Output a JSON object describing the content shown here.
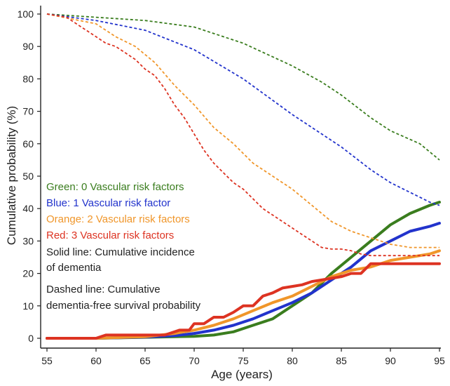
{
  "chart_data": {
    "type": "line",
    "xlabel": "Age (years)",
    "ylabel": "Cumulative probability (%)",
    "xlim": [
      55,
      95
    ],
    "ylim": [
      0,
      100
    ],
    "x_ticks": [
      55,
      60,
      65,
      70,
      75,
      80,
      85,
      90,
      95
    ],
    "y_ticks": [
      0,
      10,
      20,
      30,
      40,
      50,
      60,
      70,
      80,
      90,
      100
    ],
    "grid": false,
    "annotations": [
      {
        "text": "Green: 0 Vascular risk factors",
        "color": "#3a7d1e"
      },
      {
        "text": "Blue: 1 Vascular risk factor",
        "color": "#2233cc"
      },
      {
        "text": "Orange: 2 Vascular risk factors",
        "color": "#f0962a"
      },
      {
        "text": "Red: 3 Vascular risk factors",
        "color": "#dd3322"
      },
      {
        "text": "Solid line: Cumulative incidence",
        "color": "#222222"
      },
      {
        "text": "of dementia",
        "color": "#222222"
      },
      {
        "text": "Dashed line: Cumulative",
        "color": "#222222"
      },
      {
        "text": "dementia-free survival probability",
        "color": "#222222"
      }
    ],
    "series": [
      {
        "key": "green",
        "color": "#3a7d1e",
        "style": "solid",
        "x": [
          55,
          60,
          65,
          70,
          72,
          74,
          76,
          78,
          80,
          82,
          84,
          86,
          88,
          90,
          92,
          94,
          95
        ],
        "y": [
          0,
          0,
          0.3,
          0.6,
          1,
          2,
          4,
          6,
          10,
          14,
          20,
          25,
          30,
          35,
          38.5,
          41,
          42
        ]
      },
      {
        "key": "blue",
        "color": "#2233cc",
        "style": "solid",
        "x": [
          55,
          60,
          65,
          68,
          70,
          72,
          74,
          76,
          78,
          80,
          82,
          84,
          86,
          88,
          90,
          92,
          94,
          95
        ],
        "y": [
          0,
          0,
          0.4,
          0.8,
          1.5,
          2.5,
          4,
          6,
          8.5,
          11,
          14,
          18,
          22,
          27,
          30,
          33,
          34.5,
          35.5
        ]
      },
      {
        "key": "orange",
        "color": "#f0962a",
        "style": "solid",
        "x": [
          55,
          60,
          65,
          68,
          70,
          72,
          74,
          76,
          78,
          80,
          82,
          84,
          86,
          88,
          90,
          92,
          94,
          95
        ],
        "y": [
          0,
          0,
          0.5,
          1.5,
          2.5,
          4,
          6,
          8.5,
          11,
          13,
          16,
          19,
          21,
          22,
          24,
          25,
          26,
          27
        ]
      },
      {
        "key": "red",
        "color": "#dd3322",
        "style": "solid",
        "x": [
          55,
          60,
          61,
          62,
          67,
          68,
          68.5,
          69.5,
          70,
          71,
          72,
          73,
          74,
          75,
          76,
          77,
          78,
          79,
          80,
          81,
          82,
          83,
          84,
          85,
          86,
          87,
          88,
          95
        ],
        "y": [
          0,
          0,
          1,
          1,
          1,
          2,
          2.5,
          2.5,
          4.5,
          4.5,
          6.5,
          6.5,
          8,
          10,
          10,
          13,
          14,
          15.5,
          16,
          16.5,
          17.5,
          18,
          18.5,
          19,
          20,
          20,
          23,
          23
        ]
      },
      {
        "key": "green",
        "color": "#3a7d1e",
        "style": "dashed",
        "x": [
          55,
          60,
          65,
          70,
          75,
          80,
          83,
          85,
          88,
          90,
          93,
          95
        ],
        "y": [
          100,
          99,
          98,
          96,
          91,
          84,
          79,
          75,
          68,
          64,
          60,
          55
        ]
      },
      {
        "key": "blue",
        "color": "#2233cc",
        "style": "dashed",
        "x": [
          55,
          60,
          65,
          70,
          75,
          80,
          85,
          88,
          90,
          92,
          94,
          95
        ],
        "y": [
          100,
          98,
          95,
          89,
          80,
          69,
          59,
          52,
          48,
          45,
          42,
          41
        ]
      },
      {
        "key": "orange",
        "color": "#f0962a",
        "style": "dashed",
        "x": [
          55,
          60,
          62,
          64,
          66,
          68,
          70,
          72,
          74,
          76,
          78,
          80,
          82,
          84,
          86,
          88,
          90,
          92,
          95
        ],
        "y": [
          100,
          97,
          93,
          90,
          85,
          78,
          72,
          65,
          60,
          54,
          50,
          46,
          41,
          36,
          33,
          31,
          29,
          28,
          28
        ]
      },
      {
        "key": "red",
        "color": "#dd3322",
        "style": "dashed",
        "x": [
          55,
          57,
          58,
          59,
          60,
          61,
          62,
          63,
          64,
          65,
          66,
          67,
          68,
          69,
          70,
          71,
          72,
          73,
          74,
          75,
          76,
          77,
          78,
          79,
          80,
          81,
          82,
          83,
          84,
          85,
          86,
          87,
          88,
          95
        ],
        "y": [
          100,
          99,
          97,
          95,
          93,
          91,
          90,
          88,
          86,
          83,
          81,
          77,
          72,
          68,
          63,
          58,
          54,
          51,
          48,
          46,
          43,
          40,
          38,
          36,
          34,
          32,
          30,
          28,
          27.5,
          27.5,
          27,
          26,
          25.5,
          25.5
        ]
      }
    ]
  }
}
